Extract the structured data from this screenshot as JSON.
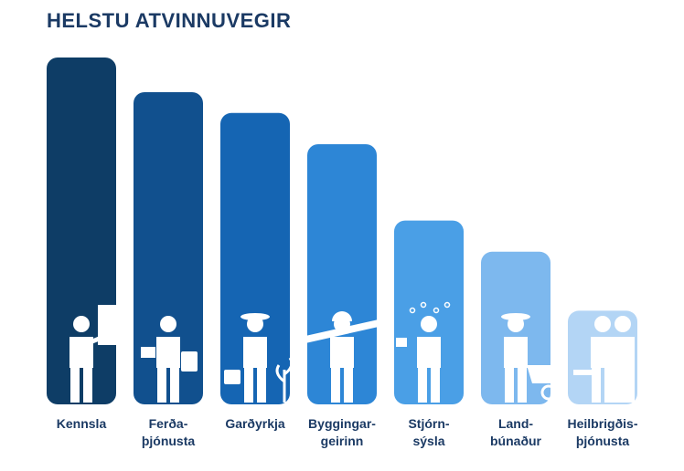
{
  "chart_data": {
    "type": "bar",
    "title": "HELSTU ATVINNUVEGIR",
    "categories": [
      [
        "Kennsla"
      ],
      [
        "Ferða-",
        "þjónusta"
      ],
      [
        "Garðyrkja"
      ],
      [
        "Byggingar-",
        "geirinn"
      ],
      [
        "Stjórn-",
        "sýsla"
      ],
      [
        "Land-",
        "búnaður"
      ],
      [
        "Heilbrigðis-",
        "þjónusta"
      ]
    ],
    "values": [
      100,
      90,
      84,
      75,
      53,
      44,
      27
    ],
    "colors": [
      "#0e3d66",
      "#11508e",
      "#1565b3",
      "#2d86d6",
      "#4a9fe6",
      "#7db8ee",
      "#b3d5f5"
    ],
    "icons": [
      "teacher-icon",
      "traveler-icon",
      "gardener-icon",
      "construction-worker-icon",
      "administrator-icon",
      "farmer-icon",
      "doctor-patient-icon"
    ],
    "xlabel": "",
    "ylabel": "",
    "ylim": [
      0,
      100
    ],
    "grid": false,
    "legend": "none"
  }
}
